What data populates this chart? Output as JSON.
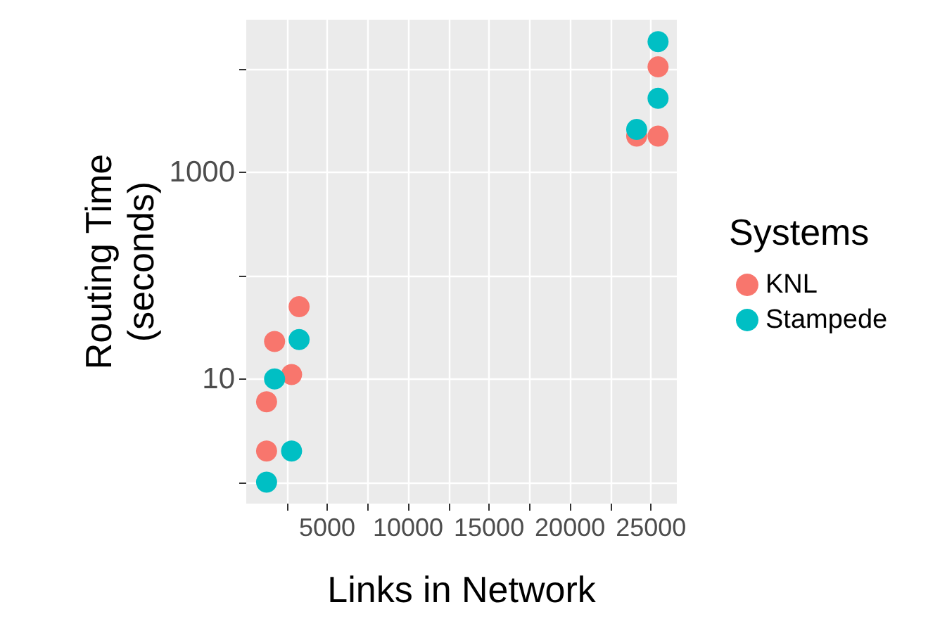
{
  "chart_data": {
    "type": "scatter",
    "xlabel": "Links in Network",
    "ylabel": "Routing Time\n(seconds)",
    "legend_title": "Systems",
    "legend": "right",
    "grid": true,
    "log": "y",
    "marker": "circle",
    "xlim": [
      0,
      26600
    ],
    "xticks": [
      {
        "value": 2500,
        "label": null
      },
      5000,
      {
        "value": 7500,
        "label": null
      },
      10000,
      {
        "value": 12500,
        "label": null
      },
      15000,
      {
        "value": 17500,
        "label": null
      },
      20000,
      {
        "value": 22500,
        "label": null
      },
      25000
    ],
    "ylim": [
      0.62,
      30000
    ],
    "yticks": [
      {
        "value": 1,
        "label": null
      },
      10,
      {
        "value": 100,
        "label": null
      },
      1000,
      {
        "value": 10000,
        "label": null
      }
    ],
    "series": [
      {
        "name": "KNL",
        "color": "#f8766d",
        "x": [
          1256,
          1256,
          1750,
          2800,
          3265,
          24120,
          25440,
          25440
        ],
        "values": [
          6.0,
          2.0,
          23,
          11,
          50,
          2240,
          2240,
          10500
        ]
      },
      {
        "name": "Stampede",
        "color": "#00bfc4",
        "x": [
          1256,
          1750,
          2800,
          3265,
          24120,
          25440,
          25440
        ],
        "values": [
          1.0,
          10,
          2.0,
          24,
          2600,
          5200,
          18400
        ]
      }
    ]
  }
}
